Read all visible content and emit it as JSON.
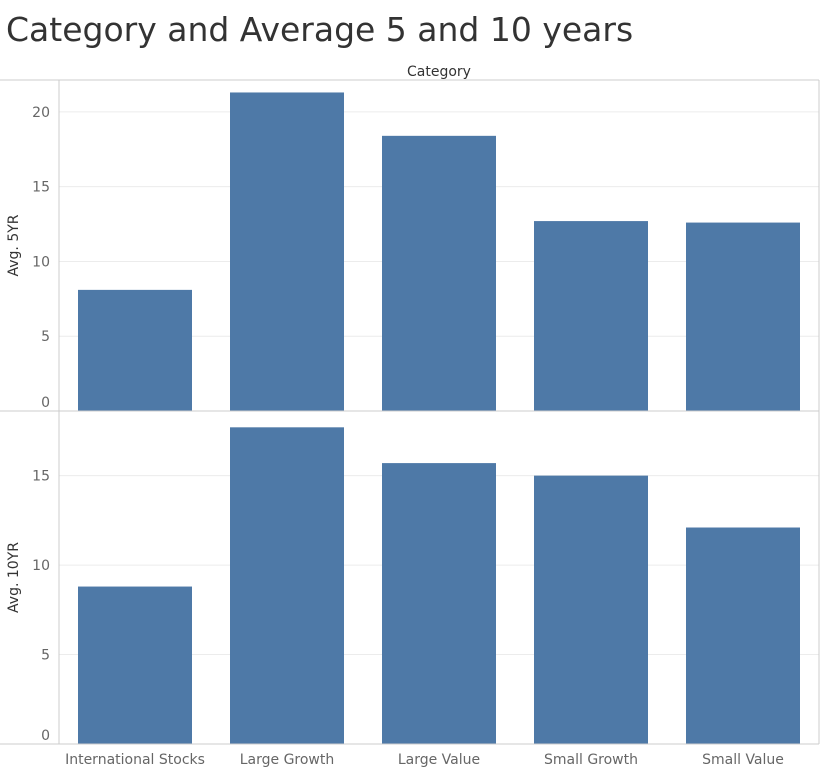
{
  "title": "Category and Average 5 and 10 years",
  "colors": {
    "bar": "#4e79a7",
    "grid": "#ececec",
    "border": "#cccccc",
    "axis_text": "#666666",
    "label_text": "#333333"
  },
  "chart_data": {
    "type": "bar",
    "title": "Category and Average 5 and 10 years",
    "column_header": "Category",
    "categories": [
      "International Stocks",
      "Large Growth",
      "Large Value",
      "Small Growth",
      "Small Value"
    ],
    "panels": [
      {
        "ylabel": "Avg. 5YR",
        "ylim": [
          0,
          22
        ],
        "ticks": [
          "0",
          "5",
          "10",
          "15",
          "20"
        ],
        "tick_values": [
          0,
          5,
          10,
          15,
          20
        ],
        "values": [
          8.1,
          21.3,
          18.4,
          12.7,
          12.6
        ]
      },
      {
        "ylabel": "Avg. 10YR",
        "ylim": [
          0,
          18.5
        ],
        "ticks": [
          "0",
          "5",
          "10",
          "15"
        ],
        "tick_values": [
          0,
          5,
          10,
          15
        ],
        "values": [
          8.8,
          17.7,
          15.7,
          15.0,
          12.1
        ]
      }
    ],
    "grid": true,
    "legend": "none"
  }
}
